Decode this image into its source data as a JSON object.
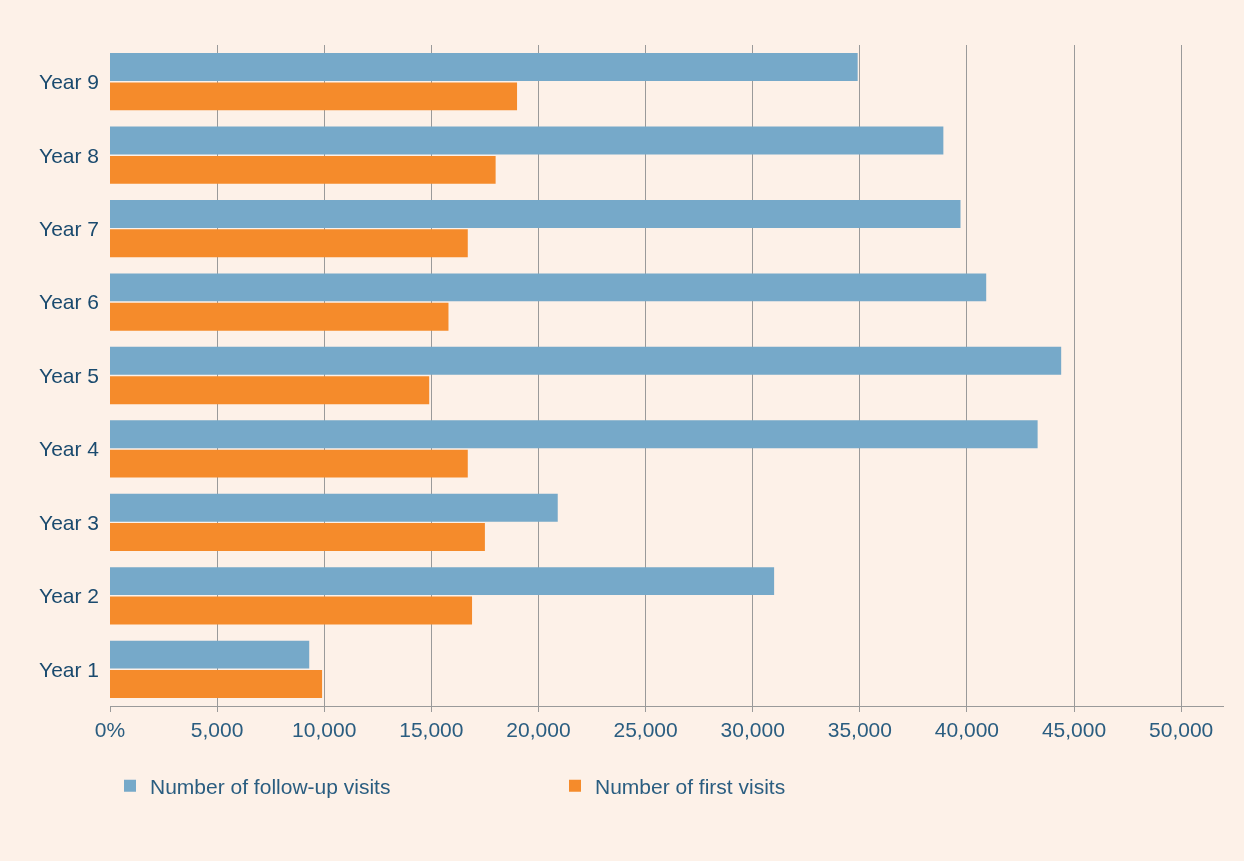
{
  "chart_data": {
    "type": "bar",
    "orientation": "horizontal",
    "categories": [
      "Year 9",
      "Year 8",
      "Year 7",
      "Year 6",
      "Year 5",
      "Year 4",
      "Year 3",
      "Year 2",
      "Year 1"
    ],
    "series": [
      {
        "name": "Number of follow-up visits",
        "color": "#76a9c9",
        "values": [
          34900,
          38900,
          39700,
          40900,
          44400,
          43300,
          20900,
          31000,
          9300
        ]
      },
      {
        "name": "Number of first visits",
        "color": "#f58b2b",
        "values": [
          19000,
          18000,
          16700,
          15800,
          14900,
          16700,
          17500,
          16900,
          9900
        ]
      }
    ],
    "xlim": [
      0,
      52000
    ],
    "xticks": [
      {
        "value": 0,
        "label": "0%"
      },
      {
        "value": 5000,
        "label": "5,000"
      },
      {
        "value": 10000,
        "label": "10,000"
      },
      {
        "value": 15000,
        "label": "15,000"
      },
      {
        "value": 20000,
        "label": "20,000"
      },
      {
        "value": 25000,
        "label": "25,000"
      },
      {
        "value": 30000,
        "label": "30,000"
      },
      {
        "value": 35000,
        "label": "35,000"
      },
      {
        "value": 40000,
        "label": "40,000"
      },
      {
        "value": 45000,
        "label": "45,000"
      },
      {
        "value": 50000,
        "label": "50,000"
      }
    ],
    "grid": "x",
    "legend": "bottom left"
  }
}
